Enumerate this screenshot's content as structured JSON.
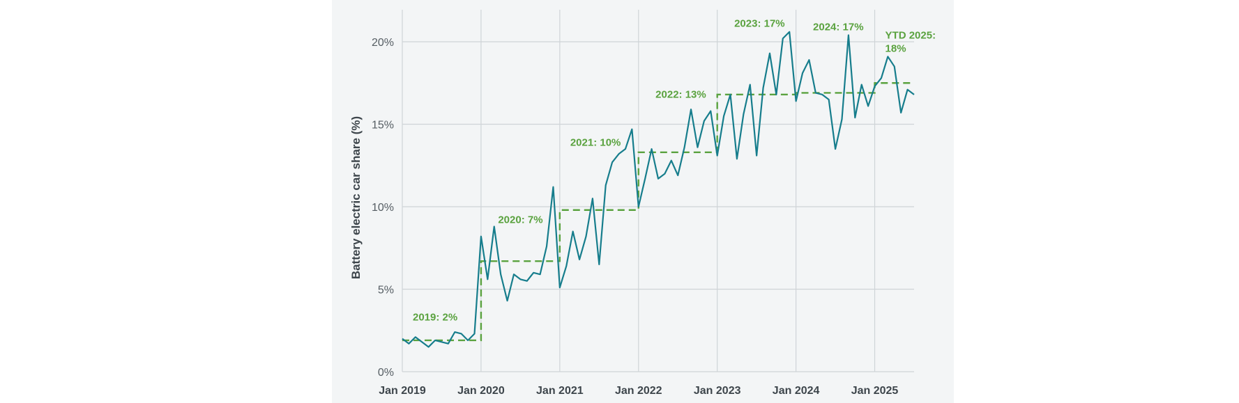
{
  "chart_data": {
    "type": "line",
    "title": "",
    "xlabel": "",
    "ylabel": "Battery electric car share (%)",
    "ylim": [
      0,
      21
    ],
    "yticks": [
      {
        "value": 0,
        "label": "0%"
      },
      {
        "value": 5,
        "label": "5%"
      },
      {
        "value": 10,
        "label": "10%"
      },
      {
        "value": 15,
        "label": "15%"
      },
      {
        "value": 20,
        "label": "20%"
      }
    ],
    "xticks": [
      {
        "value": "2019-01",
        "label": "Jan 2019"
      },
      {
        "value": "2020-01",
        "label": "Jan 2020"
      },
      {
        "value": "2021-01",
        "label": "Jan 2021"
      },
      {
        "value": "2022-01",
        "label": "Jan 2022"
      },
      {
        "value": "2023-01",
        "label": "Jan 2023"
      },
      {
        "value": "2024-01",
        "label": "Jan 2024"
      },
      {
        "value": "2025-01",
        "label": "Jan 2025"
      }
    ],
    "x_start": "2019-01",
    "x_end": "2025-07",
    "grid": true,
    "series": [
      {
        "color": "#167d8c",
        "style": "solid",
        "x": [
          "2019-01",
          "2019-02",
          "2019-03",
          "2019-04",
          "2019-05",
          "2019-06",
          "2019-07",
          "2019-08",
          "2019-09",
          "2019-10",
          "2019-11",
          "2019-12",
          "2020-01",
          "2020-02",
          "2020-03",
          "2020-04",
          "2020-05",
          "2020-06",
          "2020-07",
          "2020-08",
          "2020-09",
          "2020-10",
          "2020-11",
          "2020-12",
          "2021-01",
          "2021-02",
          "2021-03",
          "2021-04",
          "2021-05",
          "2021-06",
          "2021-07",
          "2021-08",
          "2021-09",
          "2021-10",
          "2021-11",
          "2021-12",
          "2022-01",
          "2022-02",
          "2022-03",
          "2022-04",
          "2022-05",
          "2022-06",
          "2022-07",
          "2022-08",
          "2022-09",
          "2022-10",
          "2022-11",
          "2022-12",
          "2023-01",
          "2023-02",
          "2023-03",
          "2023-04",
          "2023-05",
          "2023-06",
          "2023-07",
          "2023-08",
          "2023-09",
          "2023-10",
          "2023-11",
          "2023-12",
          "2024-01",
          "2024-02",
          "2024-03",
          "2024-04",
          "2024-05",
          "2024-06",
          "2024-07",
          "2024-08",
          "2024-09",
          "2024-10",
          "2024-11",
          "2024-12",
          "2025-01",
          "2025-02",
          "2025-03",
          "2025-04",
          "2025-05",
          "2025-06",
          "2025-07"
        ],
        "values": [
          2.0,
          1.7,
          2.1,
          1.8,
          1.5,
          1.9,
          1.8,
          1.7,
          2.4,
          2.3,
          1.9,
          2.3,
          8.2,
          5.6,
          8.8,
          5.9,
          4.3,
          5.9,
          5.6,
          5.5,
          6.0,
          5.9,
          7.6,
          11.2,
          5.1,
          6.4,
          8.5,
          6.8,
          8.2,
          10.5,
          6.5,
          11.3,
          12.7,
          13.2,
          13.5,
          14.7,
          10.0,
          11.7,
          13.5,
          11.7,
          12.0,
          12.8,
          11.9,
          13.6,
          15.9,
          13.6,
          15.2,
          15.8,
          13.1,
          15.5,
          16.8,
          12.9,
          15.6,
          17.4,
          13.1,
          17.2,
          19.3,
          16.8,
          20.2,
          20.6,
          16.4,
          18.1,
          18.9,
          16.9,
          16.8,
          16.5,
          13.5,
          15.3,
          20.4,
          15.4,
          17.4,
          16.1,
          17.3,
          17.8,
          19.1,
          18.5,
          15.7,
          17.1,
          16.8
        ]
      },
      {
        "color": "#5aa23f",
        "style": "dashed-step",
        "steps": [
          {
            "from": "2019-01",
            "to": "2020-01",
            "value": 1.9
          },
          {
            "from": "2020-01",
            "to": "2021-01",
            "value": 6.7
          },
          {
            "from": "2021-01",
            "to": "2022-01",
            "value": 9.8
          },
          {
            "from": "2022-01",
            "to": "2023-01",
            "value": 13.3
          },
          {
            "from": "2023-01",
            "to": "2024-01",
            "value": 16.8
          },
          {
            "from": "2024-01",
            "to": "2025-01",
            "value": 16.9
          },
          {
            "from": "2025-01",
            "to": "2025-07",
            "value": 17.5
          }
        ]
      }
    ],
    "annotations": [
      {
        "lines": [
          "2019: 2%"
        ],
        "x": "2019-01",
        "y": 3.1
      },
      {
        "lines": [
          "2020: 7%"
        ],
        "x": "2020-02",
        "y": 9.0
      },
      {
        "lines": [
          "2021: 10%"
        ],
        "x": "2021-01",
        "y": 13.7
      },
      {
        "lines": [
          "2022: 13%"
        ],
        "x": "2022-02",
        "y": 16.6
      },
      {
        "lines": [
          "2023: 17%"
        ],
        "x": "2023-02",
        "y": 20.9
      },
      {
        "lines": [
          "2024: 17%"
        ],
        "x": "2024-02",
        "y": 20.7
      },
      {
        "lines": [
          "YTD 2025:",
          "18%"
        ],
        "x": "2025-01",
        "y": 20.2
      }
    ]
  }
}
